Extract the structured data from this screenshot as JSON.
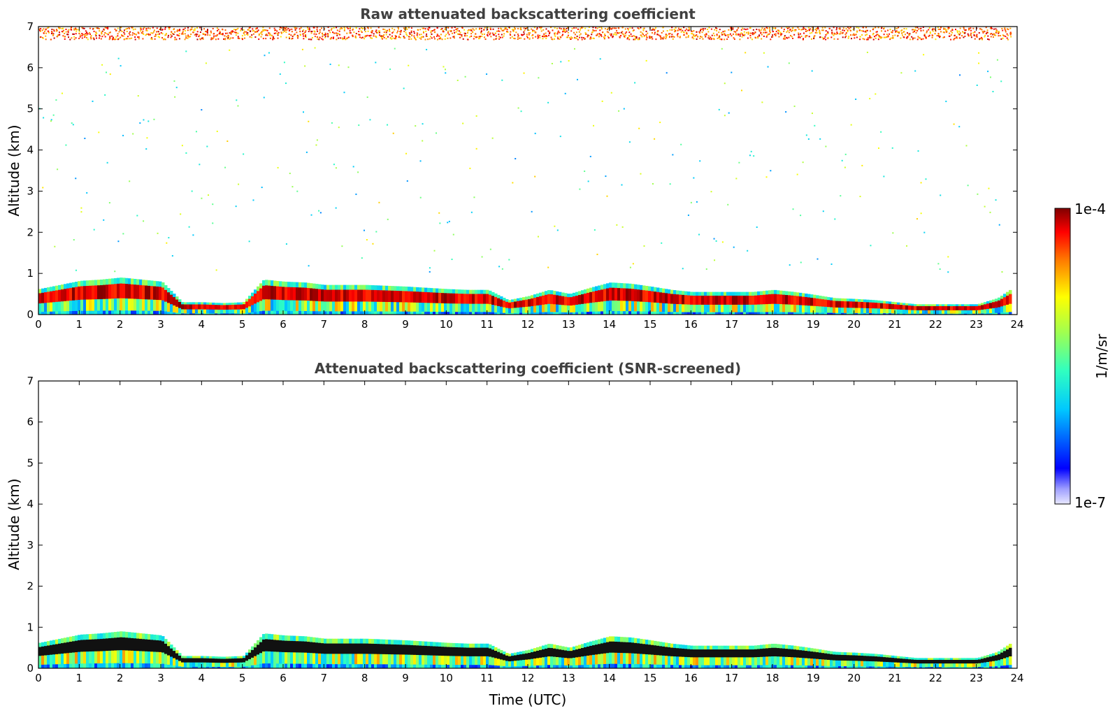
{
  "chart_data": [
    {
      "type": "heatmap",
      "title": "Raw attenuated backscattering coefficient",
      "xlabel": "",
      "ylabel": "Altitude (km)",
      "xlim": [
        0,
        24
      ],
      "ylim": [
        0,
        7
      ],
      "xticks": [
        "0",
        "1",
        "2",
        "3",
        "4",
        "5",
        "6",
        "7",
        "8",
        "9",
        "10",
        "11",
        "12",
        "13",
        "14",
        "15",
        "16",
        "17",
        "18",
        "19",
        "20",
        "21",
        "22",
        "23",
        "24"
      ],
      "yticks": [
        "0",
        "1",
        "2",
        "3",
        "4",
        "5",
        "6",
        "7"
      ],
      "boundary_layer_top_km": {
        "time_utc": [
          0,
          0.5,
          1,
          1.5,
          2,
          2.5,
          3,
          3.5,
          4,
          4.5,
          5,
          5.5,
          6,
          6.5,
          7,
          7.5,
          8,
          8.5,
          9,
          9.5,
          10,
          10.5,
          11,
          11.5,
          12,
          12.5,
          13,
          13.5,
          14,
          14.5,
          15,
          15.5,
          16,
          16.5,
          17,
          17.5,
          18,
          18.5,
          19,
          19.5,
          20,
          20.5,
          21,
          21.5,
          22,
          22.5,
          23,
          23.5,
          23.8
        ],
        "altitude_km": [
          0.62,
          0.72,
          0.82,
          0.85,
          0.9,
          0.85,
          0.8,
          0.3,
          0.3,
          0.28,
          0.3,
          0.85,
          0.8,
          0.78,
          0.72,
          0.72,
          0.72,
          0.7,
          0.68,
          0.65,
          0.62,
          0.6,
          0.6,
          0.35,
          0.45,
          0.6,
          0.5,
          0.65,
          0.78,
          0.75,
          0.68,
          0.6,
          0.55,
          0.55,
          0.55,
          0.55,
          0.6,
          0.55,
          0.48,
          0.4,
          0.38,
          0.35,
          0.3,
          0.25,
          0.25,
          0.25,
          0.25,
          0.4,
          0.6
        ]
      },
      "noise_free_top_data_km": 6.7
    },
    {
      "type": "heatmap",
      "title": "Attenuated backscattering coefficient (SNR-screened)",
      "xlabel": "Time (UTC)",
      "ylabel": "Altitude (km)",
      "xlim": [
        0,
        24
      ],
      "ylim": [
        0,
        7
      ],
      "xticks": [
        "0",
        "1",
        "2",
        "3",
        "4",
        "5",
        "6",
        "7",
        "8",
        "9",
        "10",
        "11",
        "12",
        "13",
        "14",
        "15",
        "16",
        "17",
        "18",
        "19",
        "20",
        "21",
        "22",
        "23",
        "24"
      ],
      "yticks": [
        "0",
        "1",
        "2",
        "3",
        "4",
        "5",
        "6",
        "7"
      ]
    }
  ],
  "colorbar": {
    "label": "1/m/sr",
    "max_label": "1e-4",
    "min_label": "1e-7",
    "scale": "log",
    "range": [
      1e-07,
      0.0001
    ]
  }
}
